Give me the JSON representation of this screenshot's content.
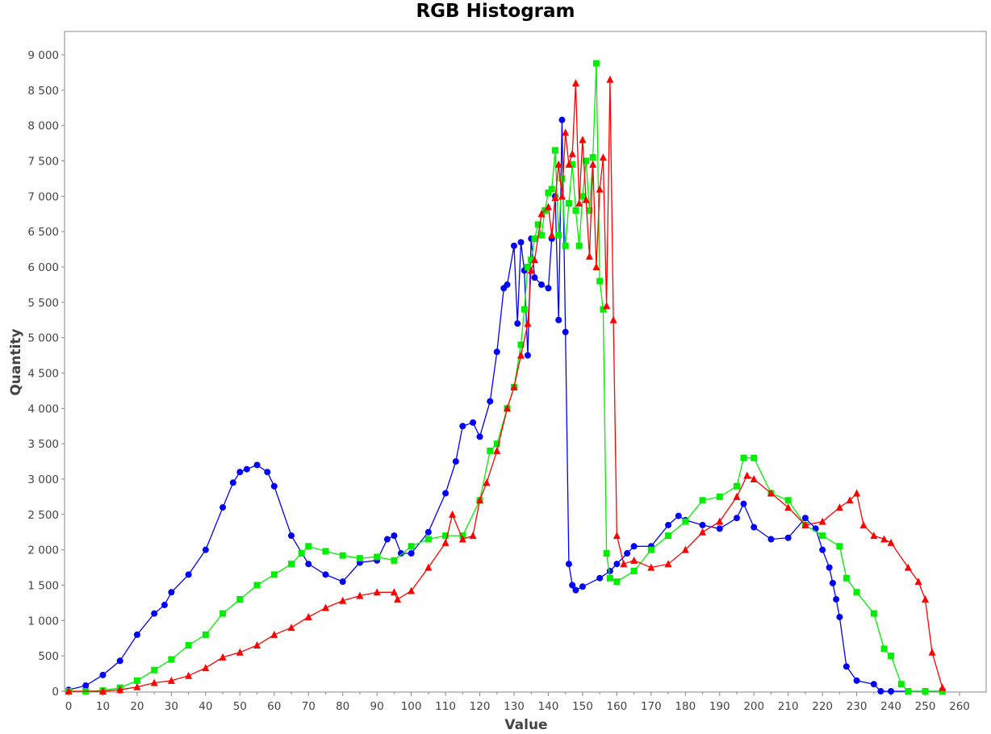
{
  "chart_data": {
    "type": "line",
    "title": "RGB Histogram",
    "xlabel": "Value",
    "ylabel": "Quantity",
    "xlim": [
      0,
      268
    ],
    "ylim": [
      0,
      9300
    ],
    "x_ticks": [
      0,
      10,
      20,
      30,
      40,
      50,
      60,
      70,
      80,
      90,
      100,
      110,
      120,
      130,
      140,
      150,
      160,
      170,
      180,
      190,
      200,
      210,
      220,
      230,
      240,
      250,
      260
    ],
    "y_ticks": [
      0,
      500,
      1000,
      1500,
      2000,
      2500,
      3000,
      3500,
      4000,
      4500,
      5000,
      5500,
      6000,
      6500,
      7000,
      7500,
      8000,
      8500,
      9000
    ],
    "y_tick_labels": [
      "0",
      "500",
      "1 000",
      "1 500",
      "2 000",
      "2 500",
      "3 000",
      "3 500",
      "4 000",
      "4 500",
      "5 000",
      "5 500",
      "6 000",
      "6 500",
      "7 000",
      "7 500",
      "8 000",
      "8 500",
      "9 000"
    ],
    "grid": false,
    "legend": "none",
    "series": [
      {
        "color": "#0000ff",
        "marker": "circle",
        "x": [
          0,
          5,
          10,
          15,
          20,
          25,
          28,
          30,
          35,
          40,
          45,
          48,
          50,
          52,
          55,
          58,
          60,
          65,
          70,
          75,
          80,
          85,
          90,
          93,
          95,
          97,
          100,
          105,
          110,
          113,
          115,
          118,
          120,
          123,
          125,
          127,
          128,
          130,
          131,
          132,
          133,
          134,
          135,
          136,
          138,
          140,
          141,
          142,
          143,
          144,
          145,
          146,
          147,
          148,
          150,
          155,
          158,
          160,
          163,
          165,
          170,
          175,
          178,
          180,
          185,
          190,
          195,
          197,
          200,
          205,
          210,
          215,
          218,
          220,
          222,
          223,
          224,
          225,
          227,
          230,
          235,
          237,
          240,
          245,
          250,
          255
        ],
        "y": [
          20,
          80,
          230,
          430,
          800,
          1100,
          1220,
          1400,
          1650,
          2000,
          2600,
          2950,
          3100,
          3140,
          3200,
          3100,
          2900,
          2200,
          1800,
          1650,
          1550,
          1820,
          1850,
          2150,
          2200,
          1950,
          1950,
          2250,
          2800,
          3250,
          3750,
          3800,
          3600,
          4100,
          4800,
          5700,
          5750,
          6300,
          5200,
          6350,
          5950,
          4750,
          6400,
          5850,
          5750,
          5700,
          6400,
          7000,
          5250,
          8080,
          5080,
          1800,
          1500,
          1430,
          1480,
          1600,
          1700,
          1800,
          1950,
          2050,
          2050,
          2350,
          2480,
          2420,
          2350,
          2300,
          2450,
          2650,
          2320,
          2150,
          2170,
          2450,
          2300,
          2000,
          1750,
          1530,
          1300,
          1050,
          350,
          150,
          100,
          0,
          0,
          0,
          0,
          0
        ]
      },
      {
        "color": "#00ee00",
        "marker": "square",
        "x": [
          0,
          5,
          10,
          15,
          20,
          25,
          30,
          35,
          40,
          45,
          50,
          55,
          60,
          65,
          68,
          70,
          75,
          80,
          85,
          90,
          95,
          100,
          105,
          110,
          115,
          120,
          123,
          125,
          128,
          130,
          132,
          133,
          134,
          135,
          136,
          137,
          138,
          139,
          140,
          141,
          142,
          143,
          144,
          145,
          146,
          147,
          148,
          149,
          150,
          151,
          152,
          153,
          154,
          155,
          156,
          157,
          158,
          160,
          165,
          170,
          175,
          180,
          185,
          190,
          195,
          197,
          200,
          205,
          210,
          215,
          220,
          225,
          227,
          230,
          235,
          238,
          240,
          243,
          245,
          250,
          255
        ],
        "y": [
          0,
          0,
          10,
          50,
          150,
          300,
          450,
          650,
          800,
          1100,
          1300,
          1500,
          1650,
          1800,
          1950,
          2050,
          1980,
          1920,
          1880,
          1900,
          1850,
          2050,
          2150,
          2200,
          2200,
          2700,
          3400,
          3500,
          4000,
          4300,
          4900,
          5400,
          6000,
          6100,
          6400,
          6600,
          6450,
          6800,
          7050,
          7100,
          7650,
          6450,
          7250,
          6300,
          6900,
          7450,
          6800,
          6300,
          7000,
          7500,
          6800,
          7550,
          8880,
          5800,
          5400,
          1950,
          1600,
          1550,
          1700,
          2000,
          2200,
          2400,
          2700,
          2750,
          2900,
          3300,
          3300,
          2800,
          2700,
          2350,
          2200,
          2050,
          1600,
          1400,
          1100,
          600,
          500,
          100,
          0,
          0,
          0
        ]
      },
      {
        "color": "#ff0000",
        "marker": "triangle",
        "x": [
          0,
          10,
          15,
          20,
          25,
          30,
          35,
          40,
          45,
          50,
          55,
          60,
          65,
          70,
          75,
          80,
          85,
          90,
          95,
          96,
          100,
          105,
          110,
          112,
          115,
          118,
          120,
          122,
          125,
          128,
          130,
          132,
          134,
          135,
          136,
          138,
          140,
          141,
          142,
          143,
          144,
          145,
          146,
          147,
          148,
          149,
          150,
          151,
          152,
          153,
          154,
          155,
          156,
          157,
          158,
          159,
          160,
          162,
          165,
          170,
          175,
          180,
          185,
          190,
          195,
          198,
          200,
          205,
          210,
          215,
          220,
          225,
          228,
          230,
          232,
          235,
          238,
          240,
          245,
          248,
          250,
          252,
          255
        ],
        "y": [
          0,
          0,
          20,
          60,
          120,
          150,
          220,
          330,
          480,
          550,
          650,
          800,
          900,
          1050,
          1180,
          1280,
          1350,
          1400,
          1400,
          1300,
          1420,
          1750,
          2100,
          2500,
          2150,
          2200,
          2700,
          2950,
          3400,
          4000,
          4300,
          4750,
          5200,
          5950,
          6100,
          6750,
          6850,
          6450,
          6980,
          7450,
          7000,
          7900,
          7450,
          7600,
          8600,
          6900,
          7800,
          6950,
          6150,
          7450,
          6000,
          7100,
          7550,
          5450,
          8650,
          5250,
          2200,
          1800,
          1850,
          1750,
          1800,
          2000,
          2250,
          2400,
          2750,
          3050,
          3000,
          2800,
          2600,
          2350,
          2400,
          2600,
          2700,
          2800,
          2350,
          2200,
          2150,
          2100,
          1750,
          1550,
          1300,
          550,
          50
        ]
      }
    ]
  }
}
